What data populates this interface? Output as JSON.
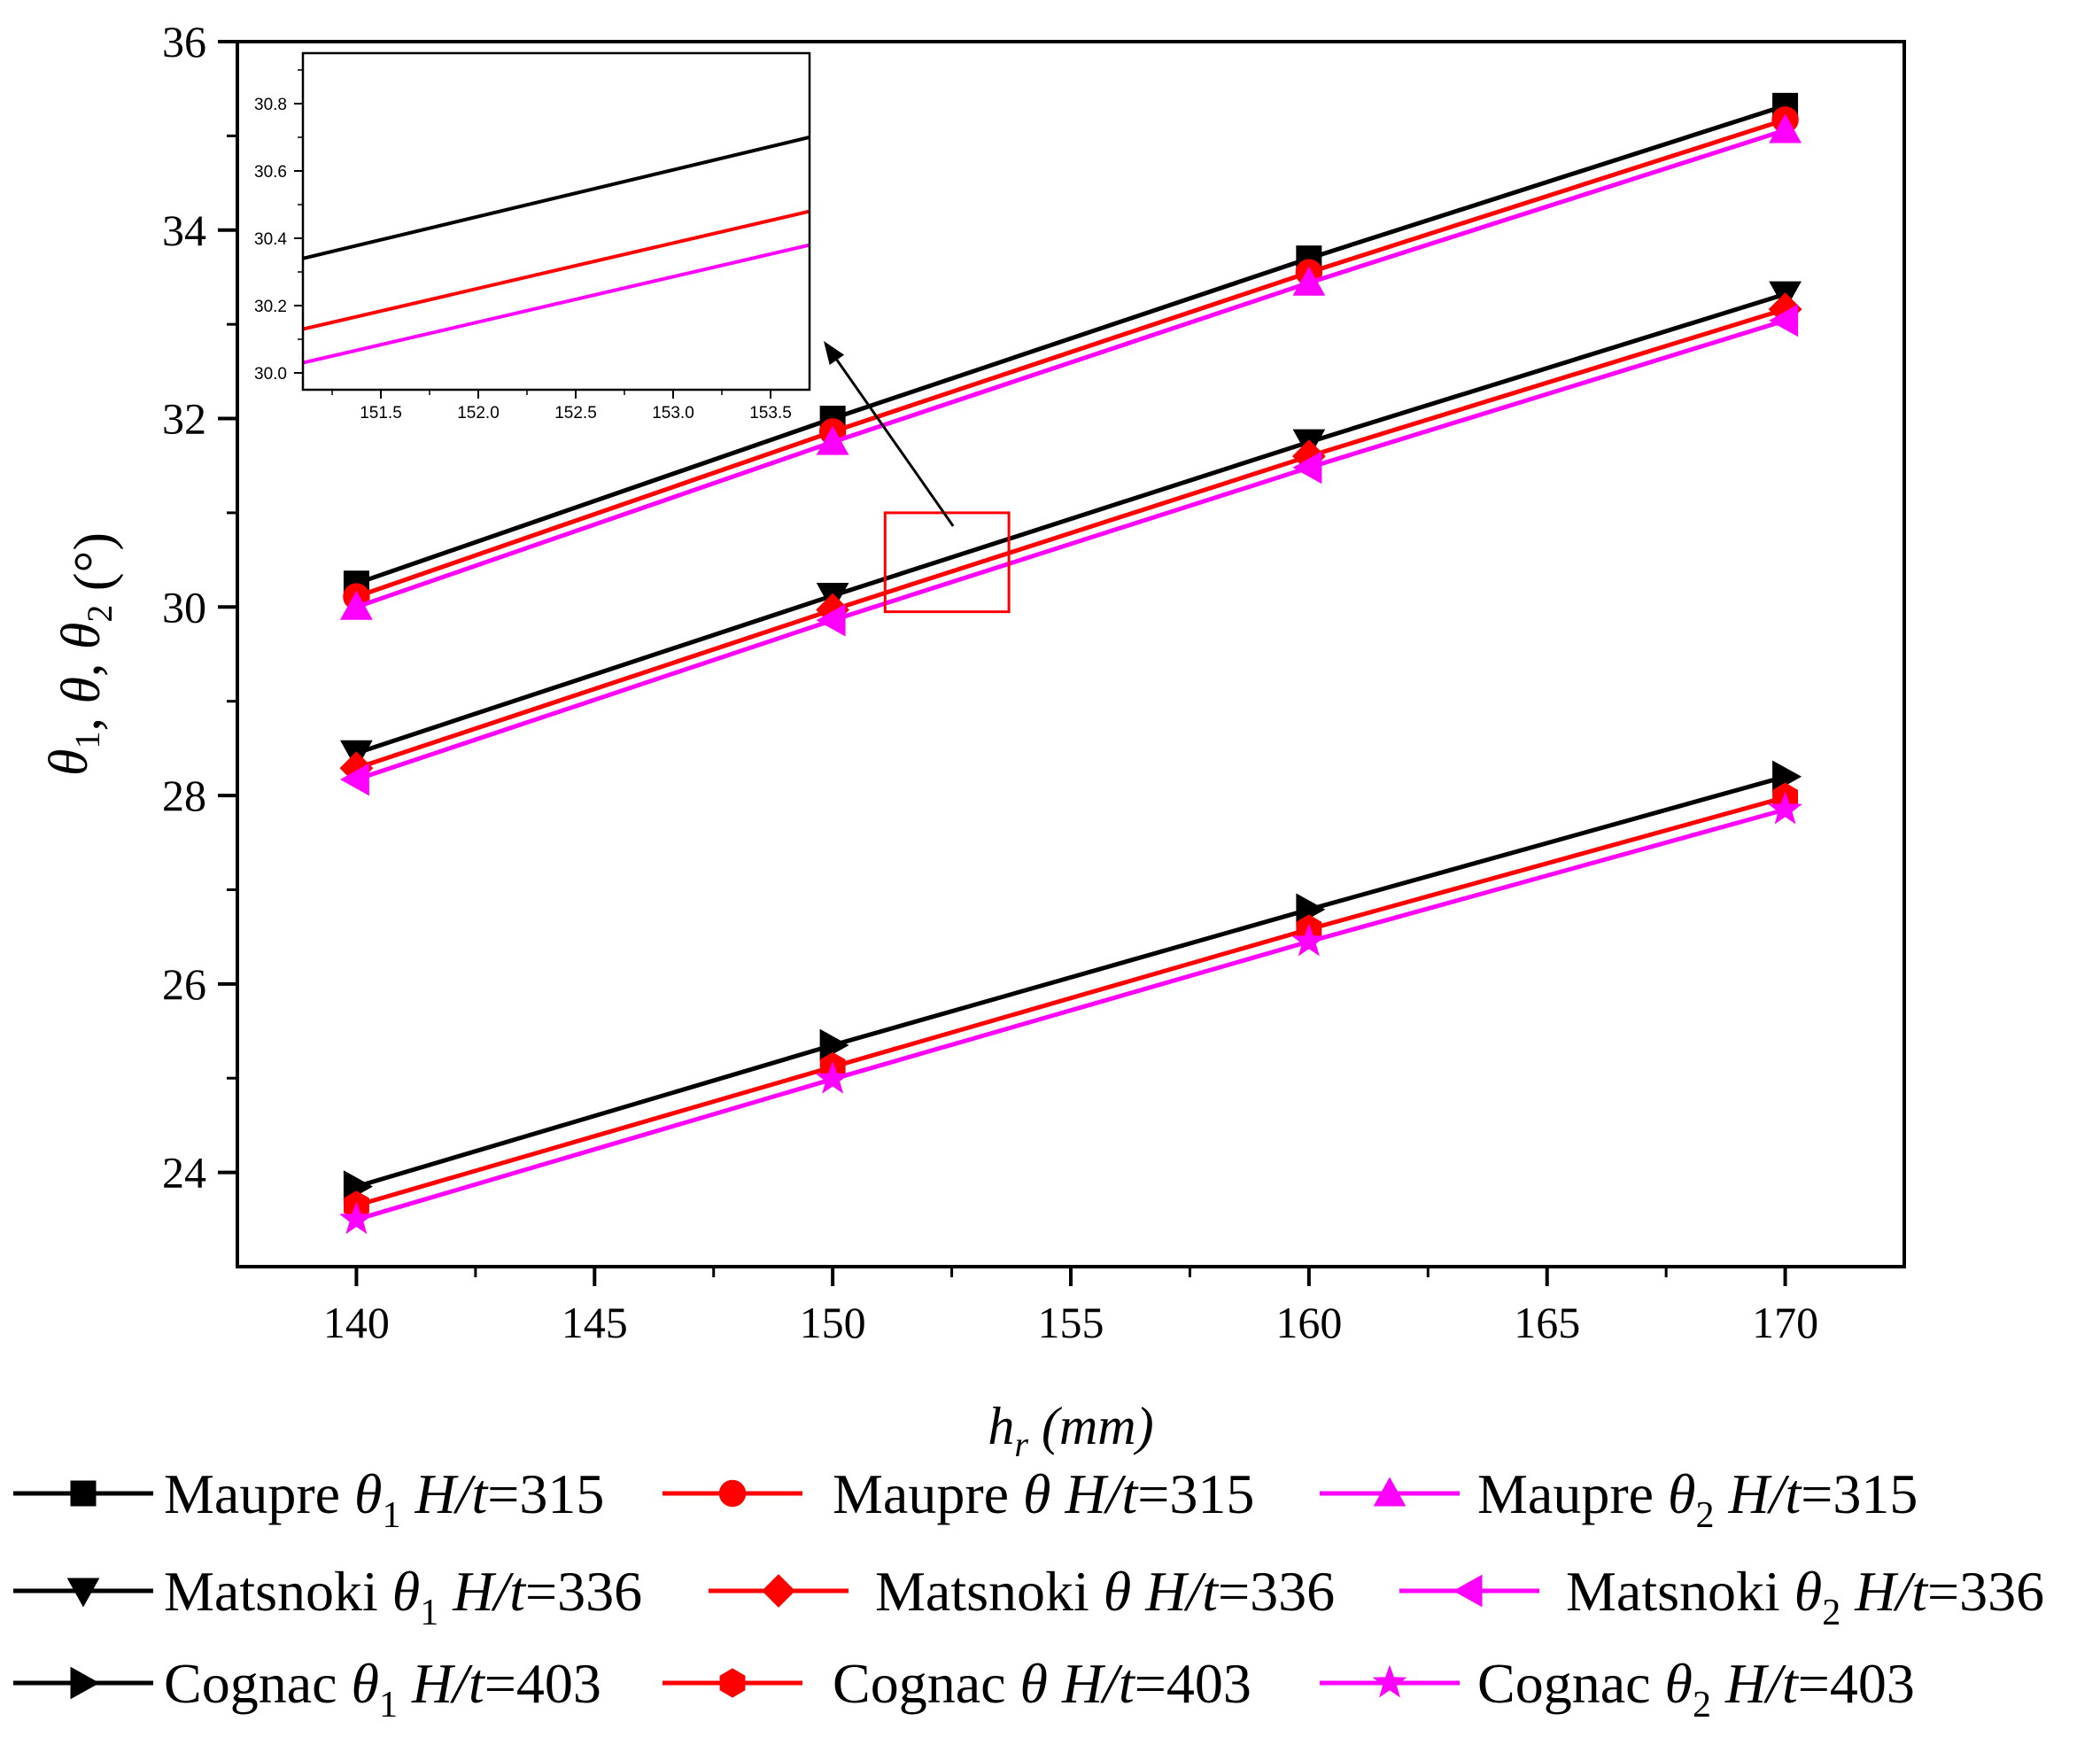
{
  "chart_data": {
    "type": "line",
    "x": [
      140,
      150,
      160,
      170
    ],
    "xlabel": {
      "var": "h",
      "sub": "r",
      "unit": " (mm)"
    },
    "ylabel": {
      "parts": [
        {
          "t": "θ",
          "s": "1"
        },
        {
          "t": ", "
        },
        {
          "t": "θ"
        },
        {
          "t": ", "
        },
        {
          "t": "θ",
          "s": "2"
        },
        {
          "t": " (°)"
        }
      ]
    },
    "xlim": [
      137.5,
      172.5
    ],
    "ylim": [
      23,
      36
    ],
    "xticks": [
      "140",
      "145",
      "150",
      "155",
      "160",
      "165",
      "170"
    ],
    "yticks": [
      "24",
      "26",
      "28",
      "30",
      "32",
      "34",
      "36"
    ],
    "series": [
      {
        "name": "Maupre θ1 H/t=315",
        "label": {
          "name": "Maupre",
          "sym": "θ",
          "sub": "1",
          "ratio": "H/t",
          "eq": "=315"
        },
        "color": "#000000",
        "marker": "square",
        "values": [
          30.25,
          32.0,
          33.7,
          35.32
        ]
      },
      {
        "name": "Maupre θ H/t=315",
        "label": {
          "name": "Maupre",
          "sym": "θ",
          "sub": "",
          "ratio": "H/t",
          "eq": "=315"
        },
        "color": "#ff0000",
        "marker": "circle",
        "values": [
          30.11,
          31.86,
          33.55,
          35.17
        ]
      },
      {
        "name": "Maupre θ2 H/t=315",
        "label": {
          "name": "Maupre",
          "sym": "θ",
          "sub": "2",
          "ratio": "H/t",
          "eq": "=315"
        },
        "color": "#ff00ff",
        "marker": "triangle-up",
        "values": [
          30.0,
          31.75,
          33.44,
          35.06
        ]
      },
      {
        "name": "Matsnoki θ1 H/t=336",
        "label": {
          "name": "Matsnoki",
          "sym": "θ",
          "sub": "1",
          "ratio": "H/t",
          "eq": "=336"
        },
        "color": "#000000",
        "marker": "triangle-down",
        "values": [
          28.45,
          30.12,
          31.75,
          33.32
        ]
      },
      {
        "name": "Matsnoki θ H/t=336",
        "label": {
          "name": "Matsnoki",
          "sym": "θ",
          "sub": "",
          "ratio": "H/t",
          "eq": "=336"
        },
        "color": "#ff0000",
        "marker": "diamond",
        "values": [
          28.29,
          29.97,
          31.6,
          33.16
        ]
      },
      {
        "name": "Matsnoki θ2 H/t=336",
        "label": {
          "name": "Matsnoki",
          "sym": "θ",
          "sub": "2",
          "ratio": "H/t",
          "eq": "=336"
        },
        "color": "#ff00ff",
        "marker": "triangle-left",
        "values": [
          28.17,
          29.86,
          31.48,
          33.04
        ]
      },
      {
        "name": "Cognac θ1 H/t=403",
        "label": {
          "name": "Cognac",
          "sym": "θ",
          "sub": "1",
          "ratio": "H/t",
          "eq": "=403"
        },
        "color": "#000000",
        "marker": "triangle-right",
        "values": [
          23.85,
          25.35,
          26.79,
          28.2
        ]
      },
      {
        "name": "Cognac θ H/t=403",
        "label": {
          "name": "Cognac",
          "sym": "θ",
          "sub": "",
          "ratio": "H/t",
          "eq": "=403"
        },
        "color": "#ff0000",
        "marker": "hexagon",
        "values": [
          23.65,
          25.12,
          26.58,
          27.98
        ]
      },
      {
        "name": "Cognac θ2 H/t=403",
        "label": {
          "name": "Cognac",
          "sym": "θ",
          "sub": "2",
          "ratio": "H/t",
          "eq": "=403"
        },
        "color": "#ff00ff",
        "marker": "star",
        "values": [
          23.5,
          24.99,
          26.45,
          27.85
        ]
      }
    ],
    "inset": {
      "xlim": [
        151.1,
        153.7
      ],
      "ylim": [
        29.95,
        30.95
      ],
      "xticks": [
        "151.5",
        "152.0",
        "152.5",
        "153.0",
        "153.5"
      ],
      "yticks": [
        "30.0",
        "30.2",
        "30.4",
        "30.6",
        "30.8"
      ],
      "lines": [
        {
          "color": "#000000",
          "x": [
            151.1,
            153.7
          ],
          "y": [
            30.34,
            30.7
          ]
        },
        {
          "color": "#ff0000",
          "x": [
            151.1,
            153.7
          ],
          "y": [
            30.13,
            30.48
          ]
        },
        {
          "color": "#ff00ff",
          "x": [
            151.1,
            153.7
          ],
          "y": [
            30.03,
            30.38
          ]
        }
      ],
      "zoom_region": {
        "x": [
          151.1,
          153.7
        ],
        "y": [
          29.95,
          31.0
        ]
      }
    },
    "legend": {
      "position": "bottom",
      "columns": 3
    }
  }
}
